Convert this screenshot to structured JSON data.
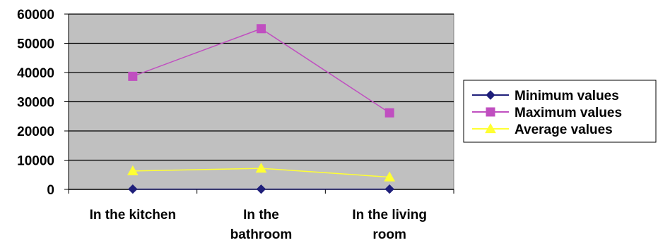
{
  "chart_data": {
    "type": "line",
    "title": "",
    "xlabel": "",
    "ylabel": "",
    "categories": [
      [
        "In the kitchen"
      ],
      [
        "In the",
        "bathroom"
      ],
      [
        "In the living",
        "room"
      ]
    ],
    "ylim": [
      0,
      60000
    ],
    "yticks": [
      "60000",
      "50000",
      "40000",
      "30000",
      "20000",
      "10000",
      "0"
    ],
    "grid": true,
    "legend_position": "right",
    "plot_background": "#c0c0c0",
    "series": [
      {
        "name": "Minimum values",
        "values": [
          100,
          80,
          100
        ],
        "color": "#1f1f7a",
        "marker": "diamond"
      },
      {
        "name": "Maximum values",
        "values": [
          38700,
          55000,
          26200
        ],
        "color": "#c04fc0",
        "marker": "square"
      },
      {
        "name": "Average values",
        "values": [
          6300,
          7200,
          4200
        ],
        "color": "#ffff33",
        "marker": "triangle"
      }
    ]
  }
}
